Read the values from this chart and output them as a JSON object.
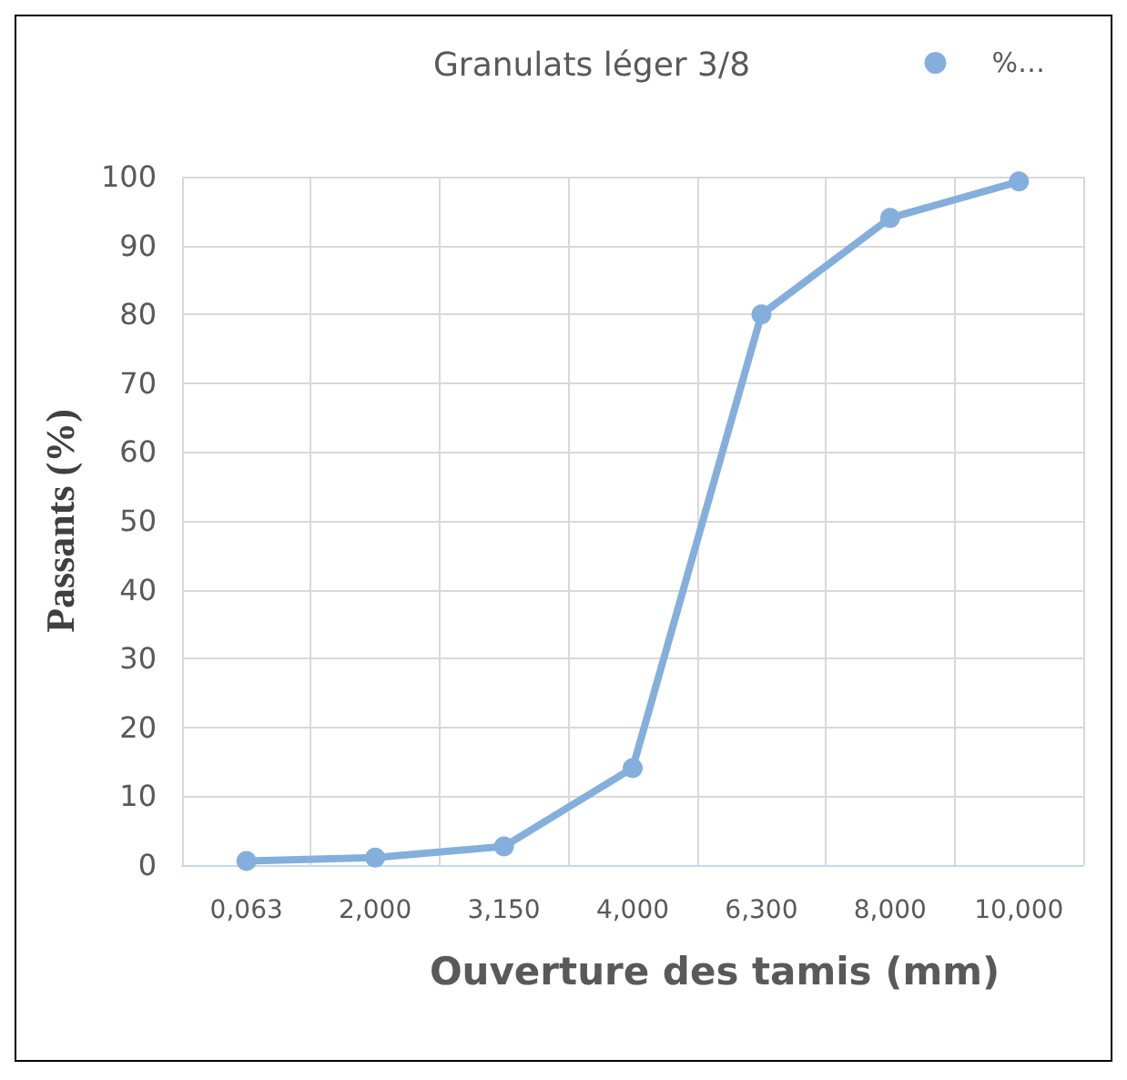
{
  "chart_data": {
    "type": "line",
    "title": "Granulats léger 3/8",
    "xlabel": "Ouverture des tamis (mm)",
    "ylabel": "Passants (%)",
    "categories": [
      "0,063",
      "2,000",
      "3,150",
      "4,000",
      "6,300",
      "8,000",
      "10,000"
    ],
    "series": [
      {
        "name": "%…",
        "color": "#84afdc",
        "values": [
          0.6,
          1.1,
          2.7,
          14.1,
          80,
          94,
          99.3
        ]
      }
    ],
    "ylim": [
      0,
      100
    ],
    "yticks": [
      0,
      10,
      20,
      30,
      40,
      50,
      60,
      70,
      80,
      90,
      100
    ],
    "grid": true,
    "legend": "top right",
    "marker": "circle",
    "line_style": "solid"
  }
}
